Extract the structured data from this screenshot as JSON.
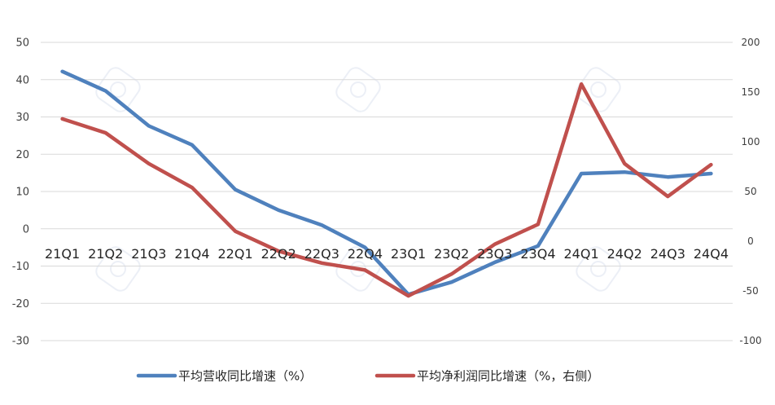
{
  "chart_data": {
    "type": "line",
    "categories": [
      "21Q1",
      "21Q2",
      "21Q3",
      "21Q4",
      "22Q1",
      "22Q2",
      "22Q3",
      "22Q4",
      "23Q1",
      "23Q2",
      "23Q3",
      "23Q4",
      "24Q1",
      "24Q2",
      "24Q3",
      "24Q4"
    ],
    "left_axis": {
      "ylim": [
        -30,
        50
      ],
      "ticks": [
        50,
        40,
        30,
        20,
        10,
        0,
        -10,
        -20,
        -30
      ]
    },
    "right_axis": {
      "ylim": [
        -100,
        200
      ],
      "ticks": [
        200,
        150,
        100,
        50,
        0,
        -50,
        -100
      ]
    },
    "grid": true,
    "legend_position": "bottom",
    "series": [
      {
        "name": "平均营收同比增速（%）",
        "axis": "left",
        "color": "#4f81bd",
        "values": [
          42.2,
          37.0,
          27.6,
          22.5,
          10.5,
          5.0,
          1.0,
          -5.0,
          -17.6,
          -14.3,
          -9.0,
          -4.6,
          14.8,
          15.2,
          13.9,
          14.8
        ]
      },
      {
        "name": "平均净利润同比增速（%，右侧）",
        "axis": "right",
        "color": "#c0504d",
        "values": [
          123,
          109,
          78,
          54,
          10,
          -10,
          -22,
          -29,
          -55,
          -33,
          -3,
          17,
          158,
          78,
          45,
          77
        ]
      }
    ]
  }
}
